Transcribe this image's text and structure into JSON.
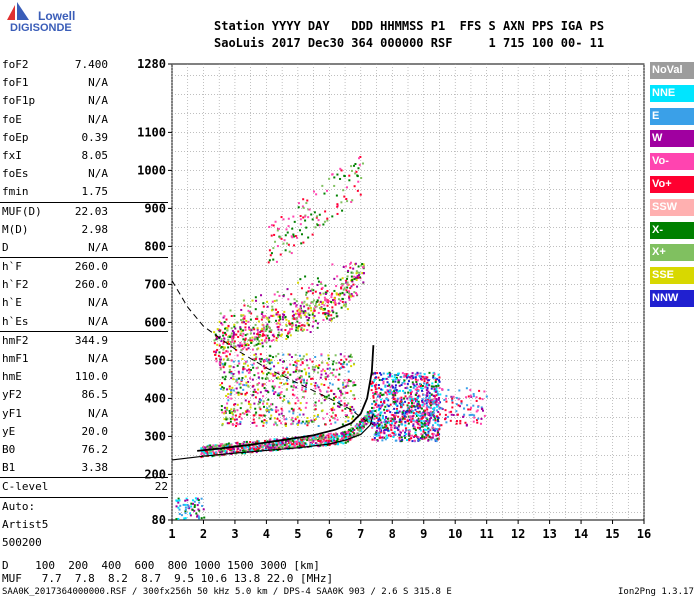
{
  "logo": {
    "line1": "Lowell",
    "line2": "DIGISONDE"
  },
  "header": {
    "line1": "Station YYYY DAY   DDD HHMMSS P1  FFS S AXN PPS IGA PS",
    "line2": "SaoLuis 2017 Dec30 364 000000 RSF     1 715 100 00- 11"
  },
  "params": [
    {
      "label": "foF2",
      "value": "7.400"
    },
    {
      "label": "foF1",
      "value": "N/A"
    },
    {
      "label": "foF1p",
      "value": "N/A"
    },
    {
      "label": "foE",
      "value": "N/A"
    },
    {
      "label": "foEp",
      "value": "0.39"
    },
    {
      "label": "fxI",
      "value": "8.05"
    },
    {
      "label": "foEs",
      "value": "N/A"
    },
    {
      "label": "fmin",
      "value": "1.75"
    },
    {
      "label": "MUF(D)",
      "value": "22.03"
    },
    {
      "label": "M(D)",
      "value": "2.98"
    },
    {
      "label": "D",
      "value": "N/A"
    },
    {
      "label": "h`F",
      "value": "260.0"
    },
    {
      "label": "h`F2",
      "value": "260.0"
    },
    {
      "label": "h`E",
      "value": "N/A"
    },
    {
      "label": "h`Es",
      "value": "N/A"
    },
    {
      "label": "hmF2",
      "value": "344.9"
    },
    {
      "label": "hmF1",
      "value": "N/A"
    },
    {
      "label": "hmE",
      "value": "110.0"
    },
    {
      "label": "yF2",
      "value": "86.5"
    },
    {
      "label": "yF1",
      "value": "N/A"
    },
    {
      "label": "yE",
      "value": "20.0"
    },
    {
      "label": "B0",
      "value": "76.2"
    },
    {
      "label": "B1",
      "value": "3.38"
    },
    {
      "label": "C-level",
      "value": "22"
    },
    {
      "label": "Auto:",
      "value": ""
    },
    {
      "label": "Artist5",
      "value": ""
    },
    {
      "label": "500200",
      "value": ""
    }
  ],
  "legend": [
    {
      "label": "NoVal",
      "color": "#9c9c9c"
    },
    {
      "label": "NNE",
      "color": "#00e5ff"
    },
    {
      "label": "E",
      "color": "#3aa0e8"
    },
    {
      "label": "W",
      "color": "#a000a0"
    },
    {
      "label": "Vo-",
      "color": "#ff44b0"
    },
    {
      "label": "Vo+",
      "color": "#ff0030"
    },
    {
      "label": "SSW",
      "color": "#ffb0b0"
    },
    {
      "label": "X-",
      "color": "#008000"
    },
    {
      "label": "X+",
      "color": "#80c060"
    },
    {
      "label": "SSE",
      "color": "#d8d800"
    },
    {
      "label": "NNW",
      "color": "#2020d0"
    }
  ],
  "chart_data": {
    "type": "scatter",
    "xlim": [
      1,
      16
    ],
    "ylim": [
      80,
      1280
    ],
    "x_ticks": [
      "1",
      "2",
      "3",
      "4",
      "5",
      "6",
      "7",
      "8",
      "9",
      "10",
      "11",
      "12",
      "13",
      "14",
      "15",
      "16"
    ],
    "y_ticks": [
      {
        "v": 80,
        "label": "80"
      },
      {
        "v": 200,
        "label": "200"
      },
      {
        "v": 300,
        "label": "300"
      },
      {
        "v": 400,
        "label": "400"
      },
      {
        "v": 500,
        "label": "500"
      },
      {
        "v": 600,
        "label": "600"
      },
      {
        "v": 700,
        "label": "700"
      },
      {
        "v": 800,
        "label": "800"
      },
      {
        "v": 900,
        "label": "900"
      },
      {
        "v": 1000,
        "label": "1000"
      },
      {
        "v": 1100,
        "label": "1100"
      },
      {
        "v": 1280,
        "label": "1280"
      }
    ],
    "grid": true,
    "trace_solid_lower": [
      [
        1,
        238
      ],
      [
        2,
        248
      ],
      [
        3,
        256
      ],
      [
        4,
        263
      ],
      [
        5,
        270
      ],
      [
        6,
        280
      ],
      [
        6.5,
        290
      ],
      [
        7.0,
        305
      ],
      [
        7.3,
        330
      ],
      [
        7.4,
        360
      ]
    ],
    "trace_virtual_height": [
      [
        1.8,
        262
      ],
      [
        2.5,
        268
      ],
      [
        3.5,
        278
      ],
      [
        4.5,
        290
      ],
      [
        5.5,
        303
      ],
      [
        6.2,
        318
      ],
      [
        6.7,
        335
      ],
      [
        7.0,
        360
      ],
      [
        7.2,
        400
      ],
      [
        7.35,
        470
      ],
      [
        7.4,
        540
      ]
    ],
    "trace_dashed": [
      [
        1,
        710
      ],
      [
        1.5,
        640
      ],
      [
        2,
        590
      ],
      [
        3,
        530
      ],
      [
        4,
        480
      ],
      [
        5,
        440
      ],
      [
        6,
        400
      ],
      [
        6.7,
        370
      ],
      [
        7.0,
        350
      ],
      [
        7.4,
        330
      ]
    ]
  },
  "muf": {
    "d_line": "D    100  200  400  600  800 1000 1500 3000 [km]",
    "muf_line": "MUF   7.7  7.8  8.2  8.7  9.5 10.6 13.8 22.0 [MHz]"
  },
  "footer": {
    "left": "SAA0K_2017364000000.RSF / 300fx256h 50 kHz 5.0 km / DPS-4 SAA0K 903 / 2.6 S 315.8 E",
    "right": "Ion2Png 1.3.17"
  }
}
